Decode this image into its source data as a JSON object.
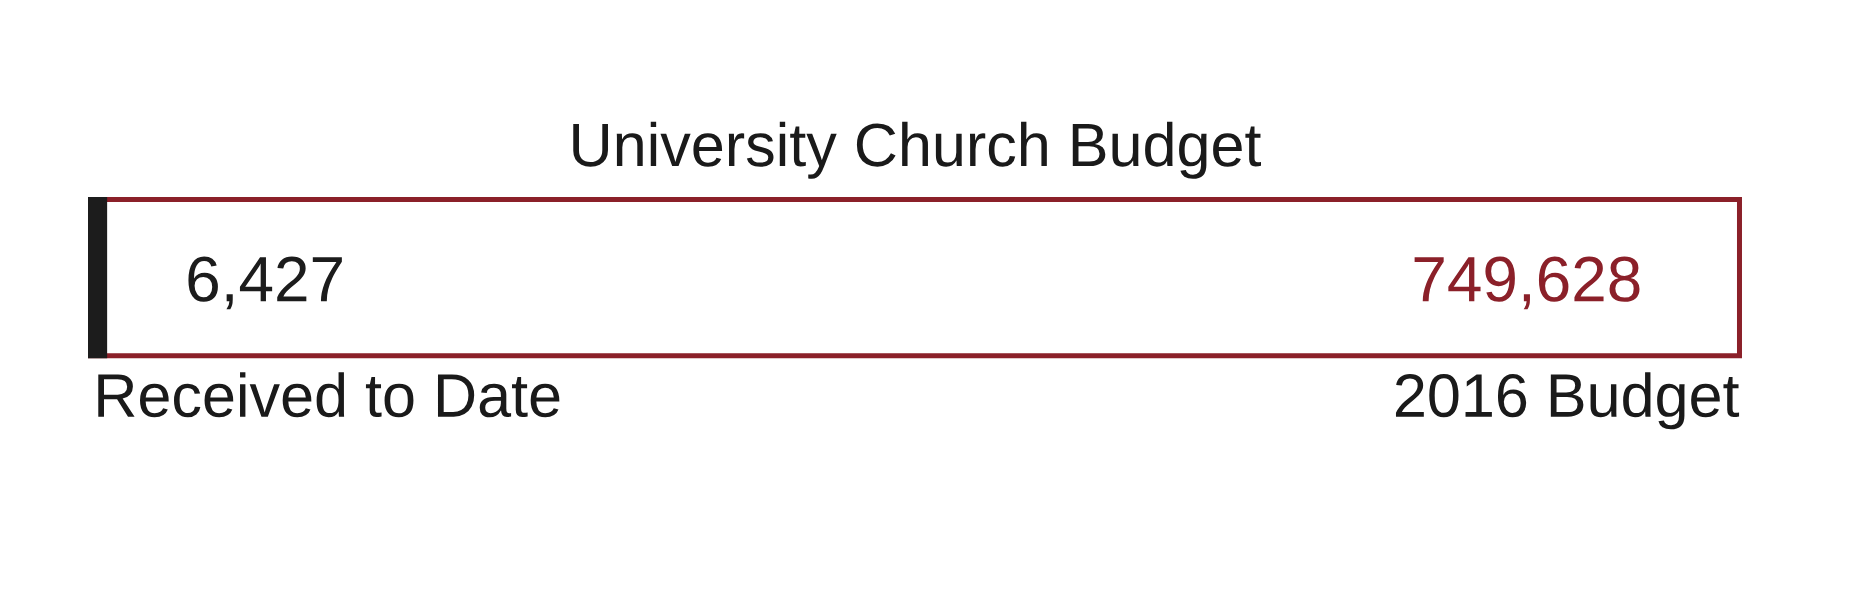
{
  "chart_data": {
    "type": "bar",
    "title": "University Church Budget",
    "orientation": "horizontal",
    "categories": [
      null
    ],
    "series": [
      {
        "name": "Received to Date",
        "color": "#1c1c1c",
        "values": [
          6427
        ],
        "value_labels": [
          "6,427"
        ]
      },
      {
        "name": "2016 Budget",
        "color": "#8b2029",
        "values": [
          749628
        ],
        "value_labels": [
          "749,628"
        ]
      }
    ],
    "tick_labels": false
  }
}
